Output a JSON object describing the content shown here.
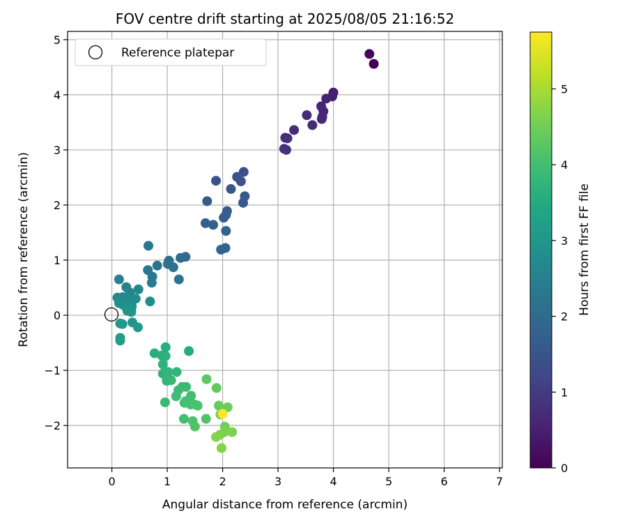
{
  "chart_data": {
    "type": "scatter",
    "title": "FOV centre drift starting at 2025/08/05 21:16:52",
    "xlabel": "Angular distance from reference (arcmin)",
    "ylabel": "Rotation from reference (arcmin)",
    "xlim": [
      -0.8,
      7.05
    ],
    "ylim": [
      -2.77,
      5.15
    ],
    "xticks": [
      0,
      1,
      2,
      3,
      4,
      5,
      6,
      7
    ],
    "yticks": [
      -2,
      -1,
      0,
      1,
      2,
      3,
      4,
      5
    ],
    "xtick_labels": [
      "0",
      "1",
      "2",
      "3",
      "4",
      "5",
      "6",
      "7"
    ],
    "ytick_labels": [
      "−2",
      "−1",
      "0",
      "1",
      "2",
      "3",
      "4",
      "5"
    ],
    "grid": true,
    "legend": {
      "position": "upper-left",
      "entries": [
        "Reference platepar"
      ]
    },
    "reference_point": {
      "x": 0,
      "y": 0
    },
    "colorbar": {
      "label": "Hours from first FF file",
      "range": [
        0,
        5.75
      ],
      "ticks": [
        0,
        1,
        2,
        3,
        4,
        5
      ],
      "tick_labels": [
        "0",
        "1",
        "2",
        "3",
        "4",
        "5"
      ],
      "colormap": "viridis"
    },
    "points": [
      {
        "x": 4.65,
        "y": 4.74,
        "t": 0.08
      },
      {
        "x": 4.73,
        "y": 4.56,
        "t": 0.0
      },
      {
        "x": 4.0,
        "y": 4.04,
        "t": 0.45
      },
      {
        "x": 3.98,
        "y": 3.97,
        "t": 0.5
      },
      {
        "x": 3.87,
        "y": 3.93,
        "t": 0.55
      },
      {
        "x": 3.78,
        "y": 3.79,
        "t": 0.58
      },
      {
        "x": 3.82,
        "y": 3.7,
        "t": 0.6
      },
      {
        "x": 3.8,
        "y": 3.6,
        "t": 0.62
      },
      {
        "x": 3.79,
        "y": 3.56,
        "t": 0.65
      },
      {
        "x": 3.52,
        "y": 3.63,
        "t": 0.68
      },
      {
        "x": 3.62,
        "y": 3.45,
        "t": 0.7
      },
      {
        "x": 3.29,
        "y": 3.36,
        "t": 0.72
      },
      {
        "x": 3.13,
        "y": 3.22,
        "t": 0.75
      },
      {
        "x": 3.17,
        "y": 3.21,
        "t": 0.78
      },
      {
        "x": 3.11,
        "y": 3.02,
        "t": 0.8
      },
      {
        "x": 3.15,
        "y": 3.0,
        "t": 0.82
      },
      {
        "x": 2.38,
        "y": 2.6,
        "t": 1.38
      },
      {
        "x": 2.26,
        "y": 2.51,
        "t": 1.45
      },
      {
        "x": 2.33,
        "y": 2.43,
        "t": 1.5
      },
      {
        "x": 1.88,
        "y": 2.44,
        "t": 1.42
      },
      {
        "x": 2.15,
        "y": 2.29,
        "t": 1.55
      },
      {
        "x": 2.4,
        "y": 2.16,
        "t": 1.58
      },
      {
        "x": 2.37,
        "y": 2.04,
        "t": 1.6
      },
      {
        "x": 1.72,
        "y": 2.07,
        "t": 1.62
      },
      {
        "x": 2.08,
        "y": 1.89,
        "t": 1.65
      },
      {
        "x": 2.06,
        "y": 1.82,
        "t": 1.68
      },
      {
        "x": 2.02,
        "y": 1.77,
        "t": 1.7
      },
      {
        "x": 1.69,
        "y": 1.67,
        "t": 1.72
      },
      {
        "x": 1.83,
        "y": 1.64,
        "t": 1.75
      },
      {
        "x": 2.06,
        "y": 1.53,
        "t": 1.8
      },
      {
        "x": 2.05,
        "y": 1.22,
        "t": 1.82
      },
      {
        "x": 1.97,
        "y": 1.19,
        "t": 1.85
      },
      {
        "x": 1.33,
        "y": 1.06,
        "t": 2.0
      },
      {
        "x": 1.24,
        "y": 1.04,
        "t": 2.05
      },
      {
        "x": 1.03,
        "y": 0.99,
        "t": 2.1
      },
      {
        "x": 1.01,
        "y": 0.93,
        "t": 2.15
      },
      {
        "x": 0.82,
        "y": 0.9,
        "t": 2.2
      },
      {
        "x": 1.11,
        "y": 0.87,
        "t": 2.15
      },
      {
        "x": 0.66,
        "y": 1.26,
        "t": 2.25
      },
      {
        "x": 0.65,
        "y": 0.82,
        "t": 2.3
      },
      {
        "x": 0.73,
        "y": 0.7,
        "t": 2.35
      },
      {
        "x": 0.72,
        "y": 0.59,
        "t": 2.4
      },
      {
        "x": 1.21,
        "y": 0.65,
        "t": 2.2
      },
      {
        "x": 0.13,
        "y": 0.65,
        "t": 2.5
      },
      {
        "x": 0.26,
        "y": 0.51,
        "t": 2.55
      },
      {
        "x": 0.33,
        "y": 0.41,
        "t": 2.6
      },
      {
        "x": 0.48,
        "y": 0.47,
        "t": 2.65
      },
      {
        "x": 0.2,
        "y": 0.33,
        "t": 2.7
      },
      {
        "x": 0.1,
        "y": 0.32,
        "t": 2.7
      },
      {
        "x": 0.43,
        "y": 0.3,
        "t": 2.72
      },
      {
        "x": 0.31,
        "y": 0.29,
        "t": 2.75
      },
      {
        "x": 0.29,
        "y": 0.26,
        "t": 2.78
      },
      {
        "x": 0.69,
        "y": 0.25,
        "t": 2.8
      },
      {
        "x": 0.13,
        "y": 0.22,
        "t": 2.82
      },
      {
        "x": 0.2,
        "y": 0.19,
        "t": 2.85
      },
      {
        "x": 0.36,
        "y": 0.16,
        "t": 2.88
      },
      {
        "x": 0.27,
        "y": 0.12,
        "t": 2.9
      },
      {
        "x": 0.35,
        "y": 0.11,
        "t": 2.92
      },
      {
        "x": 0.28,
        "y": 0.08,
        "t": 2.95
      },
      {
        "x": 0.35,
        "y": 0.06,
        "t": 2.98
      },
      {
        "x": 0.37,
        "y": -0.13,
        "t": 3.0
      },
      {
        "x": 0.19,
        "y": -0.16,
        "t": 3.05
      },
      {
        "x": 0.15,
        "y": -0.15,
        "t": 3.05
      },
      {
        "x": 0.47,
        "y": -0.22,
        "t": 3.1
      },
      {
        "x": 0.15,
        "y": -0.41,
        "t": 3.15
      },
      {
        "x": 0.15,
        "y": -0.46,
        "t": 3.2
      },
      {
        "x": 1.39,
        "y": -0.65,
        "t": 3.5
      },
      {
        "x": 0.97,
        "y": -0.58,
        "t": 3.55
      },
      {
        "x": 0.77,
        "y": -0.69,
        "t": 3.6
      },
      {
        "x": 0.9,
        "y": -0.73,
        "t": 3.62
      },
      {
        "x": 0.97,
        "y": -0.74,
        "t": 3.65
      },
      {
        "x": 0.92,
        "y": -0.89,
        "t": 3.68
      },
      {
        "x": 0.92,
        "y": -1.06,
        "t": 3.7
      },
      {
        "x": 1.02,
        "y": -1.03,
        "t": 3.72
      },
      {
        "x": 1.17,
        "y": -1.03,
        "t": 3.75
      },
      {
        "x": 1.0,
        "y": -1.13,
        "t": 3.77
      },
      {
        "x": 0.99,
        "y": -1.19,
        "t": 3.8
      },
      {
        "x": 1.07,
        "y": -1.18,
        "t": 3.82
      },
      {
        "x": 1.27,
        "y": -1.3,
        "t": 3.85
      },
      {
        "x": 1.34,
        "y": -1.3,
        "t": 3.87
      },
      {
        "x": 1.2,
        "y": -1.36,
        "t": 3.9
      },
      {
        "x": 1.16,
        "y": -1.47,
        "t": 3.92
      },
      {
        "x": 1.43,
        "y": -1.46,
        "t": 3.95
      },
      {
        "x": 1.4,
        "y": -1.53,
        "t": 3.98
      },
      {
        "x": 1.33,
        "y": -1.56,
        "t": 4.0
      },
      {
        "x": 1.31,
        "y": -1.59,
        "t": 4.02
      },
      {
        "x": 0.96,
        "y": -1.58,
        "t": 3.85
      },
      {
        "x": 1.42,
        "y": -1.62,
        "t": 4.05
      },
      {
        "x": 1.5,
        "y": -1.62,
        "t": 4.08
      },
      {
        "x": 1.55,
        "y": -1.64,
        "t": 4.1
      },
      {
        "x": 1.3,
        "y": -1.88,
        "t": 4.0
      },
      {
        "x": 1.46,
        "y": -1.92,
        "t": 4.12
      },
      {
        "x": 1.5,
        "y": -2.02,
        "t": 4.15
      },
      {
        "x": 1.7,
        "y": -1.88,
        "t": 4.15
      },
      {
        "x": 1.71,
        "y": -1.16,
        "t": 4.3
      },
      {
        "x": 1.89,
        "y": -1.32,
        "t": 4.35
      },
      {
        "x": 1.93,
        "y": -1.64,
        "t": 4.4
      },
      {
        "x": 2.09,
        "y": -1.67,
        "t": 4.45
      },
      {
        "x": 1.96,
        "y": -1.8,
        "t": 4.5
      },
      {
        "x": 2.0,
        "y": -1.79,
        "t": 5.75
      },
      {
        "x": 2.04,
        "y": -2.02,
        "t": 4.55
      },
      {
        "x": 2.03,
        "y": -2.12,
        "t": 4.6
      },
      {
        "x": 2.17,
        "y": -2.12,
        "t": 4.62
      },
      {
        "x": 1.95,
        "y": -2.17,
        "t": 4.65
      },
      {
        "x": 1.88,
        "y": -2.21,
        "t": 4.68
      },
      {
        "x": 1.98,
        "y": -2.41,
        "t": 4.7
      }
    ]
  }
}
